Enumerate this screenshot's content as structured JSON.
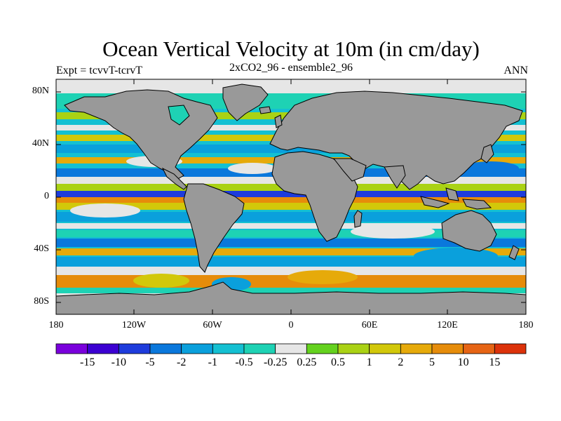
{
  "title": "Ocean Vertical Velocity at 10m (in cm/day)",
  "subtitle_left": "Expt = tcvvT-tcrvT",
  "subtitle_center": "2xCO2_96 - ensemble2_96",
  "subtitle_right": "ANN",
  "lat_labels": [
    "80N",
    "40N",
    "0",
    "40S",
    "80S"
  ],
  "lon_labels": [
    "180",
    "120W",
    "60W",
    "0",
    "60E",
    "120E",
    "180"
  ],
  "colorbar": {
    "labels": [
      "-15",
      "-10",
      "-5",
      "-2",
      "-1",
      "-0.5",
      "-0.25",
      "0.25",
      "0.5",
      "1",
      "2",
      "5",
      "10",
      "15"
    ],
    "colors": [
      "#7a00dc",
      "#3c00d2",
      "#1e3cdc",
      "#0a78dc",
      "#0aa0dc",
      "#14c0d2",
      "#1ed2b4",
      "#e6e6e6",
      "#64d21e",
      "#aad214",
      "#d2c80a",
      "#e6aa0a",
      "#e68c0a",
      "#e66414",
      "#dc320a"
    ]
  },
  "land_color": "#999999",
  "missing_color": "#e6e6e6"
}
